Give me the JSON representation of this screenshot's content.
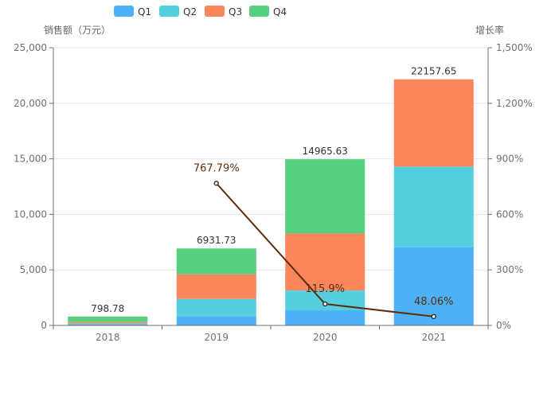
{
  "chart_data": {
    "type": "bar",
    "stacked": true,
    "categories": [
      "2018",
      "2019",
      "2020",
      "2021"
    ],
    "series": [
      {
        "name": "Q1",
        "color": "#4cb1f7",
        "values": [
          80,
          790,
          1360,
          7040
        ]
      },
      {
        "name": "Q2",
        "color": "#55cfde",
        "values": [
          90,
          1595,
          1790,
          7260
        ]
      },
      {
        "name": "Q3",
        "color": "#fc865c",
        "values": [
          140,
          2220,
          5140,
          7857.65
        ]
      },
      {
        "name": "Q4",
        "color": "#56cf7e",
        "values": [
          488.78,
          2326.73,
          6675.63,
          0
        ]
      }
    ],
    "totals": [
      "798.78",
      "6931.73",
      "14965.63",
      "22157.65"
    ],
    "line": {
      "name": "增长率",
      "color": "#5b2e0e",
      "values": [
        null,
        767.79,
        115.9,
        48.06
      ],
      "labels": [
        "",
        "767.79%",
        "115.9%",
        "48.06%"
      ]
    },
    "ylabel": "销售额（万元）",
    "y2label": "增长率",
    "ylim": [
      0,
      25000
    ],
    "y2lim": [
      0,
      1500
    ],
    "yticks": [
      "0",
      "5,000",
      "10,000",
      "15,000",
      "20,000",
      "25,000"
    ],
    "y2ticks": [
      "0%",
      "300%",
      "600%",
      "900%",
      "1,200%",
      "1,500%"
    ],
    "grid": true,
    "legend_position": "top-center"
  }
}
